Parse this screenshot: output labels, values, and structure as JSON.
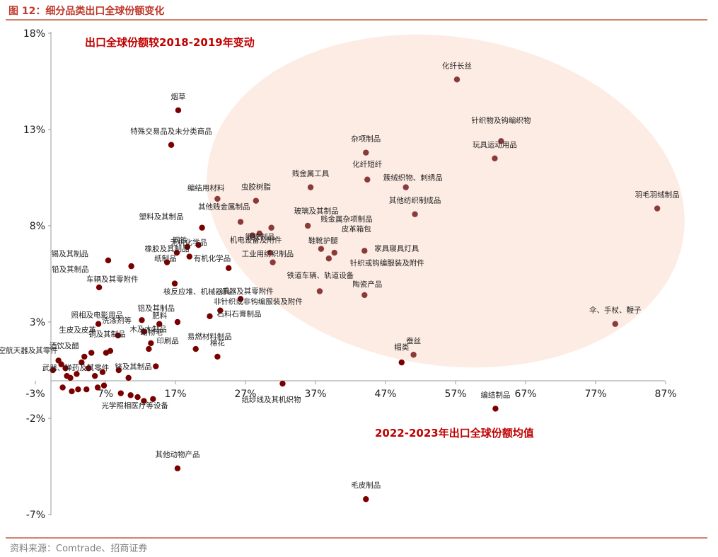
{
  "figure": {
    "title": "图 12：细分品类出口全球份额变化",
    "source": "资料来源：Comtrade、招商证券"
  },
  "colors": {
    "accent": "#c0392b",
    "rule": "#d3826a",
    "ellipse_fill": "#fdece4",
    "point_upper": "#8b3a3a",
    "point_lower": "#7a0000",
    "annotation": "#c00000"
  },
  "chart_data": {
    "type": "scatter",
    "xlabel": "2022-2023年出口全球份额均值",
    "ylabel": "出口全球份额较2018-2019年变动",
    "xlim": [
      -3,
      87
    ],
    "ylim": [
      -7,
      18
    ],
    "x_ticks": [
      "-3%",
      "7%",
      "17%",
      "27%",
      "37%",
      "47%",
      "57%",
      "67%",
      "77%",
      "87%"
    ],
    "y_ticks": [
      "18%",
      "13%",
      "8%",
      "3%",
      "-2%",
      "-7%"
    ],
    "grid": false,
    "highlight_region": "ellipse covering the upper-right group of points",
    "points": [
      {
        "name": "化纤长丝",
        "x": 57.2,
        "y": 15.6
      },
      {
        "name": "烟草",
        "x": 17.4,
        "y": 14.0
      },
      {
        "name": "针织物及钩编织物",
        "x": 63.5,
        "y": 12.4
      },
      {
        "name": "特殊交易品及未分类商品",
        "x": 16.4,
        "y": 12.2
      },
      {
        "name": "杂项制品",
        "x": 44.2,
        "y": 11.8
      },
      {
        "name": "玩具运动用品",
        "x": 62.6,
        "y": 11.5
      },
      {
        "name": "化纤短纤",
        "x": 44.4,
        "y": 10.4
      },
      {
        "name": "簇绒织物、刺绣品",
        "x": 49.9,
        "y": 10.0
      },
      {
        "name": "贱金属工具",
        "x": 36.3,
        "y": 10.0
      },
      {
        "name": "虫胶树脂",
        "x": 28.5,
        "y": 9.3
      },
      {
        "name": "编结用材料",
        "x": 23.0,
        "y": 9.4
      },
      {
        "name": "羽毛羽绒制品",
        "x": 85.8,
        "y": 8.9
      },
      {
        "name": "其他纺织制成品",
        "x": 51.2,
        "y": 8.6
      },
      {
        "name": "其他贱金属制品",
        "x": 26.3,
        "y": 8.2
      },
      {
        "name": "玻璃及其制品",
        "x": 30.7,
        "y": 7.9
      },
      {
        "name": "贱金属杂项制品",
        "x": 35.9,
        "y": 8.0
      },
      {
        "name": "钢铁制品",
        "x": 29.0,
        "y": 7.6
      },
      {
        "name": "塑料及其制品",
        "x": 20.8,
        "y": 7.9
      },
      {
        "name": "无机化学品",
        "x": 20.3,
        "y": 7.0
      },
      {
        "name": "钢铁",
        "x": 18.7,
        "y": 6.9
      },
      {
        "name": "皮革箱包",
        "x": 39.7,
        "y": 6.6
      },
      {
        "name": "鞋靴护腿",
        "x": 37.8,
        "y": 6.8
      },
      {
        "name": "工业用纺织制品",
        "x": 30.5,
        "y": 6.6
      },
      {
        "name": "家具寝具灯具",
        "x": 44.0,
        "y": 6.7
      },
      {
        "name": "针织或钩编服装及附件",
        "x": 38.9,
        "y": 6.3
      },
      {
        "name": "机电设备及附件",
        "x": 28.0,
        "y": 7.5
      },
      {
        "name": "橡胶及其制品",
        "x": 17.2,
        "y": 6.6
      },
      {
        "name": "有机化学品",
        "x": 19.0,
        "y": 6.4
      },
      {
        "name": "锡及其制品",
        "x": 7.4,
        "y": 6.2
      },
      {
        "name": "纸制品",
        "x": 15.8,
        "y": 6.1
      },
      {
        "name": "铁道车辆、轨道设备",
        "x": 30.9,
        "y": 6.1
      },
      {
        "name": "铅及其制品",
        "x": 10.7,
        "y": 5.9
      },
      {
        "name": "车辆及其零附件",
        "x": 6.1,
        "y": 4.8
      },
      {
        "name": "核反应堆、机械器具",
        "x": 16.9,
        "y": 5.0
      },
      {
        "name": "乐器及其零附件",
        "x": 24.6,
        "y": 5.8
      },
      {
        "name": "陶瓷产品",
        "x": 44.0,
        "y": 4.4
      },
      {
        "name": "非针织或非钩编服装及附件",
        "x": 37.6,
        "y": 4.6
      },
      {
        "name": "洗涤剂等",
        "x": 26.3,
        "y": 4.2
      },
      {
        "name": "生皮及皮革",
        "x": 23.4,
        "y": 3.6
      },
      {
        "name": "照相及电影用品",
        "x": 12.2,
        "y": 3.1
      },
      {
        "name": "铝及其制品",
        "x": 17.3,
        "y": 3.0
      },
      {
        "name": "肥料",
        "x": 14.7,
        "y": 2.9
      },
      {
        "name": "石料石膏制品",
        "x": 21.9,
        "y": 3.3
      },
      {
        "name": "木及木制品",
        "x": 12.5,
        "y": 2.5
      },
      {
        "name": "铜及其制品",
        "x": 6.0,
        "y": 2.9
      },
      {
        "name": "伞、手杖、鞭子",
        "x": 79.8,
        "y": 2.9
      },
      {
        "name": "动物毛",
        "x": 13.2,
        "y": 1.6
      },
      {
        "name": "航空航天器及其零件",
        "x": 5.0,
        "y": 1.4
      },
      {
        "name": "印刷品",
        "x": 13.5,
        "y": 1.9
      },
      {
        "name": "易燃材料制品",
        "x": 19.9,
        "y": 1.6
      },
      {
        "name": "棉花",
        "x": 23.0,
        "y": 1.2
      },
      {
        "name": "蚕丝",
        "x": 51.0,
        "y": 1.3
      },
      {
        "name": "帽类",
        "x": 49.3,
        "y": 0.9
      },
      {
        "name": "酒饮及醋",
        "x": 7.7,
        "y": 1.5
      },
      {
        "name": "锌及其制品",
        "x": 14.2,
        "y": 0.7
      },
      {
        "name": "武器、弹药及其零件",
        "x": 8.9,
        "y": 0.5
      },
      {
        "name": "光学照相医疗等设备",
        "x": 12.5,
        "y": -1.1
      },
      {
        "name": "纸纱线及其机织物",
        "x": 32.3,
        "y": -0.2
      },
      {
        "name": "编结制品",
        "x": 62.7,
        "y": -1.5
      },
      {
        "name": "其他动物产品",
        "x": 17.3,
        "y": -4.6
      },
      {
        "name": "毛皮制品",
        "x": 44.2,
        "y": -6.2
      }
    ],
    "unlabeled_points": [
      {
        "x": -0.5,
        "y": 0.5
      },
      {
        "x": 0.3,
        "y": 1.0
      },
      {
        "x": 0.7,
        "y": 0.8
      },
      {
        "x": 1.3,
        "y": 0.6
      },
      {
        "x": 1.5,
        "y": 0.2
      },
      {
        "x": 2.0,
        "y": 0.1
      },
      {
        "x": 2.9,
        "y": 0.3
      },
      {
        "x": 3.6,
        "y": 0.9
      },
      {
        "x": 4.0,
        "y": 1.2
      },
      {
        "x": 4.6,
        "y": 0.6
      },
      {
        "x": 5.5,
        "y": 0.2
      },
      {
        "x": 6.6,
        "y": 0.4
      },
      {
        "x": 7.1,
        "y": 1.4
      },
      {
        "x": 8.8,
        "y": 2.3
      },
      {
        "x": 10.3,
        "y": 0.1
      },
      {
        "x": 6.8,
        "y": -0.3
      },
      {
        "x": 5.9,
        "y": -0.4
      },
      {
        "x": 4.3,
        "y": -0.5
      },
      {
        "x": 3.1,
        "y": -0.5
      },
      {
        "x": 2.2,
        "y": -0.6
      },
      {
        "x": 0.9,
        "y": -0.4
      },
      {
        "x": 9.2,
        "y": -0.7
      },
      {
        "x": 10.6,
        "y": -0.8
      },
      {
        "x": 11.6,
        "y": -0.9
      },
      {
        "x": 13.8,
        "y": -1.0
      }
    ]
  }
}
